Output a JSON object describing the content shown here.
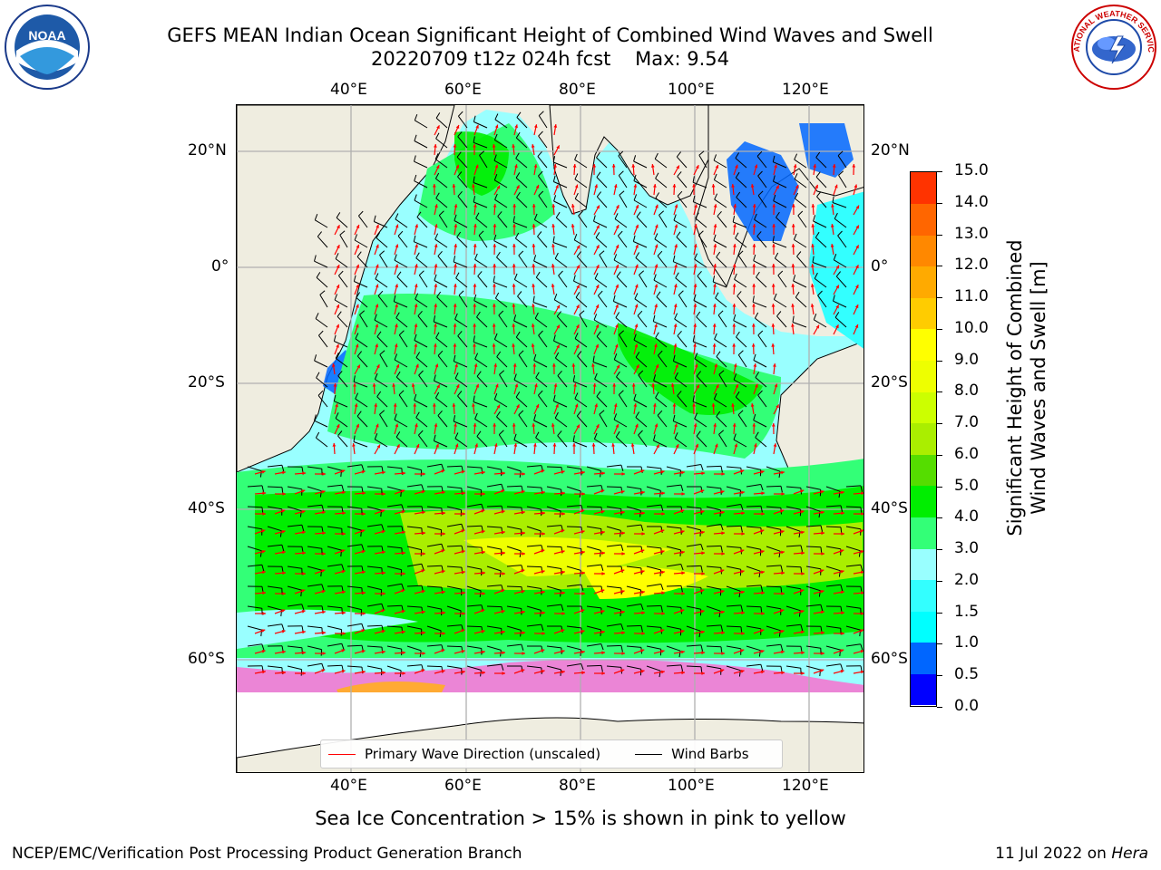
{
  "title": {
    "line1": "GEFS MEAN Indian Ocean Significant Height of Combined Wind Waves and Swell",
    "line2": "20220709 t12z 024h fcst    Max: 9.54"
  },
  "map": {
    "lon_labels": [
      "40°E",
      "60°E",
      "80°E",
      "100°E",
      "120°E"
    ],
    "lat_labels": [
      "20°N",
      "0°",
      "20°S",
      "40°S",
      "60°S"
    ],
    "colors": {
      "land": "#efede0",
      "ice_pink": "#ff66cc",
      "ice_orange": "#ffaa33",
      "arrow": "#ff0000",
      "barb": "#000000"
    }
  },
  "legend": {
    "primary_wave": "Primary Wave Direction (unscaled)",
    "wind_barbs": "Wind Barbs"
  },
  "colorbar": {
    "title_line1": "Significant Height of Combined",
    "title_line2": "Wind Waves and Swell [m]",
    "ticks": [
      "0.0",
      "0.5",
      "1.0",
      "1.5",
      "2.0",
      "3.0",
      "4.0",
      "5.0",
      "6.0",
      "7.0",
      "8.0",
      "9.0",
      "10.0",
      "11.0",
      "12.0",
      "13.0",
      "14.0",
      "15.0"
    ],
    "colors": [
      "#0000ff",
      "#0066ff",
      "#00ffff",
      "#33ffff",
      "#99ffff",
      "#33ff77",
      "#00ee00",
      "#55dd00",
      "#aaee00",
      "#ccff00",
      "#eeff00",
      "#ffff00",
      "#ffcc00",
      "#ffaa00",
      "#ff8800",
      "#ff6600",
      "#ff3300"
    ]
  },
  "footer": {
    "ice_note": "Sea Ice Concentration > 15% is shown in pink to yellow",
    "left": "NCEP/EMC/Verification Post Processing Product Generation Branch",
    "right_date": "11 Jul 2022 on ",
    "right_host": "Hera"
  },
  "logos": {
    "noaa_text": "NOAA",
    "nws_text": "NATIONAL WEATHER SERVICE"
  }
}
